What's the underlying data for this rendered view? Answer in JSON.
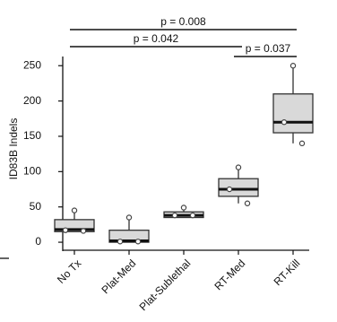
{
  "chart_data": {
    "type": "box",
    "y_label": "ID83B Indels",
    "categories": [
      "No Tx",
      "Plat-Med",
      "Plat-Sublethal",
      "RT-Med",
      "RT-Kill"
    ],
    "box_color": "#d9d9d9",
    "boxes": [
      {
        "min": 15,
        "q1": 15,
        "median": 18,
        "q3": 32,
        "max": 45,
        "points": [
          45,
          17,
          16
        ]
      },
      {
        "min": 0,
        "q1": 0,
        "median": 2,
        "q3": 17,
        "max": 33,
        "points": [
          35,
          1,
          1
        ]
      },
      {
        "min": 35,
        "q1": 35,
        "median": 38,
        "q3": 43,
        "max": 48,
        "points": [
          49,
          38,
          38
        ]
      },
      {
        "min": 55,
        "q1": 65,
        "median": 75,
        "q3": 90,
        "max": 105,
        "points": [
          106,
          75,
          55
        ]
      },
      {
        "min": 140,
        "q1": 155,
        "median": 170,
        "q3": 210,
        "max": 250,
        "points": [
          250,
          170,
          140
        ]
      }
    ],
    "ylim": [
      -5,
      263
    ],
    "yticks": [
      0,
      50,
      100,
      150,
      200,
      250
    ],
    "comparisons": [
      {
        "label": "p = 0.008",
        "groups": [
          "No Tx",
          "RT-Kill"
        ]
      },
      {
        "label": "p = 0.042",
        "groups": [
          "No Tx",
          "RT-Med"
        ]
      },
      {
        "label": "p = 0.037",
        "groups": [
          "RT-Med",
          "RT-Kill"
        ]
      }
    ]
  }
}
